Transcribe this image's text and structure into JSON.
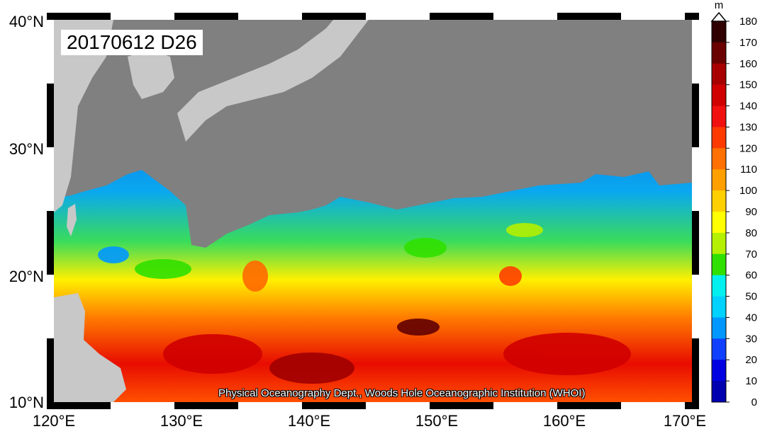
{
  "map": {
    "date_label": "20170612 D26",
    "credit": "Physical Oceanography Dept., Woods Hole Oceanographic Institution (WHOI)",
    "lon_ticks": [
      "120°E",
      "130°E",
      "140°E",
      "150°E",
      "160°E",
      "170°E"
    ],
    "lat_ticks": [
      "40°N",
      "30°N",
      "20°N",
      "10°N"
    ],
    "land_color": "#808080",
    "foreign_land_color": "#c8c8c8"
  },
  "colorbar": {
    "unit": "m",
    "levels": [
      "180",
      "170",
      "160",
      "150",
      "140",
      "130",
      "120",
      "110",
      "100",
      "90",
      "80",
      "70",
      "60",
      "50",
      "40",
      "30",
      "20",
      "10",
      "0"
    ],
    "colors": [
      "#300000",
      "#6a0000",
      "#a80000",
      "#d00000",
      "#f01010",
      "#ff3a00",
      "#ff7000",
      "#ffa000",
      "#ffd000",
      "#ffff00",
      "#b4f000",
      "#30e000",
      "#00f0f0",
      "#00d2ff",
      "#0098ff",
      "#1040ff",
      "#0000e0",
      "#0000b0",
      "#000080"
    ]
  }
}
